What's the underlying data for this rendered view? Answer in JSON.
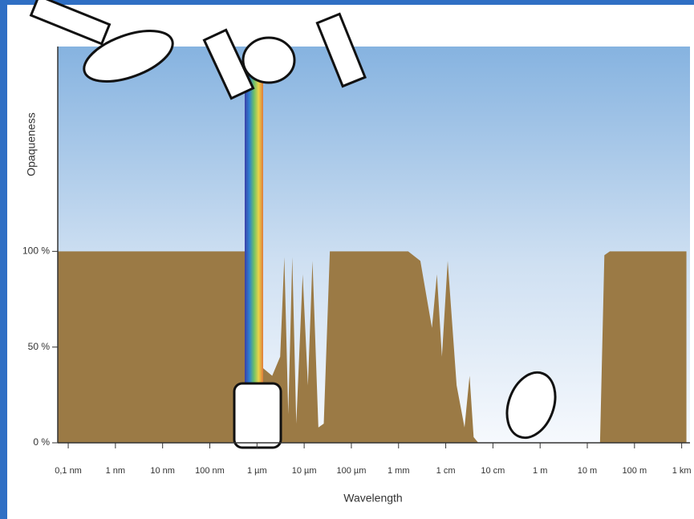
{
  "chart_data": {
    "type": "area",
    "x_label": "Wavelength",
    "y_label": "Opaqueness",
    "color": "#9b7a45",
    "xscale": "log",
    "x": [
      6e-11,
      4.4e-07,
      5.6e-07,
      7e-07,
      9.5e-07,
      1.2e-06,
      2.1e-06,
      3.1e-06,
      3.8e-06,
      4.6e-06,
      5.6e-06,
      6.8e-06,
      9.3e-06,
      1.2e-05,
      1.5e-05,
      2e-05,
      2.6e-05,
      3.5e-05,
      0.0016,
      0.0029,
      0.0051,
      0.0065,
      0.0083,
      0.011,
      0.017,
      0.025,
      0.032,
      0.039,
      0.049,
      18.6,
      23,
      30,
      1260
    ],
    "values": [
      100,
      100,
      100,
      50,
      5,
      40,
      35,
      45,
      97,
      15,
      97,
      10,
      88,
      30,
      95,
      8,
      10,
      100,
      100,
      95,
      60,
      88,
      45,
      95,
      30,
      8,
      35,
      3,
      0,
      0,
      98,
      100,
      100
    ],
    "xlim": [
      6e-11,
      1500
    ],
    "xticks": [
      {
        "value": 1e-10,
        "label": "0,1 nm"
      },
      {
        "value": 1e-09,
        "label": "1 nm"
      },
      {
        "value": 1e-08,
        "label": "10 nm"
      },
      {
        "value": 1e-07,
        "label": "100 nm"
      },
      {
        "value": 1e-06,
        "label": "1 µm"
      },
      {
        "value": 1e-05,
        "label": "10 µm"
      },
      {
        "value": 0.0001,
        "label": "100 µm"
      },
      {
        "value": 0.001,
        "label": "1 mm"
      },
      {
        "value": 0.01,
        "label": "1 cm"
      },
      {
        "value": 0.1,
        "label": "10 cm"
      },
      {
        "value": 1,
        "label": "1 m"
      },
      {
        "value": 10,
        "label": "10 m"
      },
      {
        "value": 100,
        "label": "100 m"
      },
      {
        "value": 1000,
        "label": "1 km"
      }
    ],
    "ylim": [
      0,
      207
    ],
    "yticks": [
      {
        "value": 0,
        "label": "0 %"
      },
      {
        "value": 50,
        "label": "50 %"
      },
      {
        "value": 100,
        "label": "100 %"
      }
    ]
  }
}
